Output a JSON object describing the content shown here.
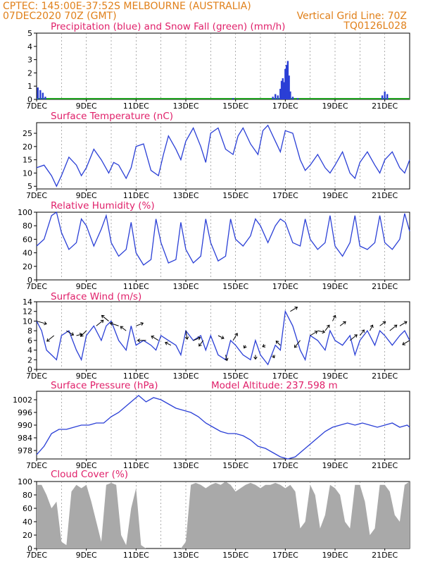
{
  "header": {
    "line1": "CPTEC:   145:00E-37:52S   MELBOURNE (AUSTRALIA)",
    "line2": "07DEC2020 70Z (GMT)",
    "vgrid": "Vertical Grid Line: 70Z",
    "code": "TQ0126L028"
  },
  "colors": {
    "header": "#e0801a",
    "title": "#e0206a",
    "line": "#2a3fd6",
    "snow": "#1fa21f",
    "cloud": "#a9a9a9",
    "arrow": "#000000"
  },
  "xaxis": {
    "labels": [
      "7DEC",
      "9DEC",
      "11DEC",
      "13DEC",
      "15DEC",
      "17DEC",
      "19DEC",
      "21DEC"
    ]
  },
  "panels": {
    "precip": {
      "title": "Precipitation (blue) and Snow Fall (green) (mm/h)",
      "yticks": [
        "0",
        "1",
        "2",
        "3",
        "4",
        "5"
      ],
      "ylim": [
        0,
        5
      ]
    },
    "temp": {
      "title": "Surface Temperature (nC)",
      "yticks": [
        "5",
        "10",
        "15",
        "20",
        "25"
      ],
      "ylim": [
        4,
        29
      ]
    },
    "rh": {
      "title": "Relative Humidity (%)",
      "yticks": [
        "0",
        "20",
        "40",
        "60",
        "80",
        "100"
      ],
      "ylim": [
        0,
        100
      ]
    },
    "wind": {
      "title": "Surface Wind (m/s)",
      "yticks": [
        "0",
        "2",
        "4",
        "6",
        "8",
        "10",
        "12",
        "14"
      ],
      "ylim": [
        0,
        14
      ]
    },
    "pres": {
      "title": "Surface Pressure (hPa)",
      "extra": "Model Altitude: 237.598 m",
      "yticks": [
        "978",
        "984",
        "990",
        "996",
        "1002"
      ],
      "ylim": [
        974,
        1006
      ]
    },
    "cloud": {
      "title": "Cloud Cover (%)",
      "yticks": [
        "0",
        "20",
        "40",
        "60",
        "80",
        "100"
      ],
      "ylim": [
        0,
        100
      ]
    }
  },
  "chart_data": [
    {
      "type": "bar",
      "title": "Precipitation (blue) and Snow Fall (green) (mm/h)",
      "x_unit": "day of December 2020",
      "ylim": [
        0,
        5
      ],
      "series": [
        {
          "name": "Precipitation",
          "x": [
            7.05,
            7.15,
            7.25,
            7.35,
            14.9,
            16.5,
            16.6,
            16.7,
            16.8,
            16.85,
            16.9,
            16.95,
            17.0,
            17.05,
            17.1,
            17.15,
            17.2,
            17.3,
            17.5,
            20.9,
            21.0,
            21.1
          ],
          "values": [
            0.9,
            0.7,
            0.5,
            0.2,
            0.1,
            0.2,
            0.4,
            0.3,
            0.8,
            1.4,
            1.6,
            1.3,
            2.3,
            2.6,
            2.9,
            1.8,
            0.6,
            0.2,
            0.1,
            0.3,
            0.6,
            0.4
          ]
        }
      ],
      "baseline_note": "Snow Fall (green) is zero throughout"
    },
    {
      "type": "line",
      "title": "Surface Temperature (nC)",
      "ylim": [
        4,
        29
      ],
      "x": [
        7.0,
        7.3,
        7.6,
        7.8,
        8.0,
        8.3,
        8.6,
        8.8,
        9.0,
        9.3,
        9.6,
        9.9,
        10.1,
        10.3,
        10.6,
        10.8,
        11.0,
        11.3,
        11.6,
        11.9,
        12.1,
        12.3,
        12.6,
        12.8,
        13.0,
        13.3,
        13.6,
        13.8,
        14.0,
        14.3,
        14.6,
        14.9,
        15.1,
        15.3,
        15.6,
        15.9,
        16.1,
        16.3,
        16.6,
        16.8,
        17.0,
        17.3,
        17.6,
        17.8,
        18.0,
        18.3,
        18.6,
        18.8,
        19.0,
        19.3,
        19.6,
        19.8,
        20.0,
        20.3,
        20.6,
        20.8,
        21.0,
        21.3,
        21.6,
        21.8,
        22.0
      ],
      "values": [
        12,
        13,
        9,
        5,
        9,
        16,
        13,
        9,
        12,
        19,
        15,
        10,
        14,
        13,
        8,
        12,
        20,
        21,
        11,
        9,
        17,
        24,
        19,
        15,
        22,
        27,
        20,
        14,
        25,
        27,
        19,
        17,
        24,
        27,
        21,
        17,
        26,
        28,
        22,
        18,
        26,
        25,
        15,
        11,
        13,
        17,
        12,
        10,
        13,
        18,
        10,
        8,
        14,
        18,
        13,
        10,
        15,
        18,
        12,
        10,
        15
      ]
    },
    {
      "type": "line",
      "title": "Relative Humidity (%)",
      "ylim": [
        0,
        100
      ],
      "x": [
        7.0,
        7.3,
        7.6,
        7.8,
        8.0,
        8.3,
        8.6,
        8.8,
        9.0,
        9.3,
        9.6,
        9.8,
        10.0,
        10.3,
        10.6,
        10.8,
        11.0,
        11.3,
        11.6,
        11.8,
        12.0,
        12.3,
        12.6,
        12.8,
        13.0,
        13.3,
        13.6,
        13.8,
        14.0,
        14.3,
        14.6,
        14.8,
        15.0,
        15.3,
        15.6,
        15.8,
        16.0,
        16.3,
        16.6,
        16.8,
        17.0,
        17.3,
        17.6,
        17.8,
        18.0,
        18.3,
        18.6,
        18.8,
        19.0,
        19.3,
        19.6,
        19.8,
        20.0,
        20.3,
        20.6,
        20.8,
        21.0,
        21.3,
        21.6,
        21.8,
        22.0
      ],
      "values": [
        50,
        60,
        95,
        100,
        70,
        45,
        55,
        90,
        80,
        50,
        75,
        95,
        55,
        35,
        45,
        85,
        40,
        22,
        30,
        90,
        55,
        25,
        30,
        85,
        45,
        25,
        35,
        90,
        55,
        28,
        35,
        90,
        60,
        50,
        65,
        90,
        80,
        55,
        80,
        90,
        85,
        55,
        50,
        90,
        60,
        45,
        55,
        95,
        50,
        35,
        55,
        95,
        50,
        45,
        55,
        95,
        55,
        45,
        60,
        98,
        72
      ]
    },
    {
      "type": "line",
      "title": "Surface Wind (m/s)",
      "ylim": [
        0,
        14
      ],
      "x": [
        7.0,
        7.2,
        7.4,
        7.6,
        7.8,
        8.0,
        8.3,
        8.6,
        8.8,
        9.0,
        9.3,
        9.6,
        9.8,
        10.0,
        10.3,
        10.6,
        10.8,
        11.0,
        11.3,
        11.6,
        11.8,
        12.0,
        12.3,
        12.6,
        12.8,
        13.0,
        13.3,
        13.6,
        13.8,
        14.0,
        14.3,
        14.6,
        14.8,
        15.0,
        15.3,
        15.6,
        15.8,
        16.0,
        16.3,
        16.6,
        16.8,
        17.0,
        17.3,
        17.6,
        17.8,
        18.0,
        18.3,
        18.6,
        18.8,
        19.0,
        19.3,
        19.6,
        19.8,
        20.0,
        20.3,
        20.6,
        20.8,
        21.0,
        21.3,
        21.6,
        21.8,
        22.0
      ],
      "values": [
        10,
        8,
        4,
        3,
        2,
        7,
        8,
        4,
        2,
        7,
        9,
        6,
        9,
        10,
        6,
        4,
        9,
        5,
        6,
        5,
        4,
        7,
        6,
        5,
        3,
        8,
        6,
        7,
        4,
        7,
        3,
        2,
        6,
        5,
        3,
        2,
        6,
        3,
        1,
        5,
        4,
        12,
        9,
        4,
        2,
        7,
        6,
        4,
        8,
        6,
        5,
        7,
        3,
        6,
        8,
        5,
        8,
        7,
        5,
        7,
        8,
        6
      ]
    },
    {
      "type": "line",
      "title": "Surface Pressure (hPa)",
      "ylim": [
        974,
        1006
      ],
      "x": [
        7.0,
        7.3,
        7.6,
        7.9,
        8.2,
        8.5,
        8.8,
        9.1,
        9.4,
        9.7,
        10.0,
        10.3,
        10.6,
        10.9,
        11.1,
        11.4,
        11.7,
        12.0,
        12.3,
        12.6,
        12.9,
        13.2,
        13.5,
        13.8,
        14.1,
        14.4,
        14.7,
        15.0,
        15.3,
        15.6,
        15.9,
        16.2,
        16.5,
        16.8,
        17.1,
        17.4,
        17.7,
        18.0,
        18.3,
        18.6,
        18.9,
        19.2,
        19.5,
        19.8,
        20.1,
        20.4,
        20.7,
        21.0,
        21.3,
        21.6,
        21.9,
        22.0
      ],
      "values": [
        976,
        980,
        986,
        988,
        988,
        989,
        990,
        990,
        991,
        991,
        994,
        996,
        999,
        1002,
        1004,
        1001,
        1003,
        1002,
        1000,
        998,
        997,
        996,
        994,
        991,
        989,
        987,
        986,
        986,
        985,
        983,
        980,
        979,
        977,
        975,
        974,
        975,
        978,
        981,
        984,
        987,
        989,
        990,
        991,
        990,
        991,
        990,
        989,
        990,
        991,
        989,
        990,
        989
      ]
    },
    {
      "type": "area",
      "title": "Cloud Cover (%)",
      "ylim": [
        0,
        100
      ],
      "x": [
        7.0,
        7.2,
        7.4,
        7.6,
        7.8,
        8.0,
        8.2,
        8.4,
        8.6,
        8.8,
        9.0,
        9.2,
        9.4,
        9.6,
        9.8,
        10.0,
        10.2,
        10.4,
        10.6,
        10.8,
        11.0,
        11.2,
        11.4,
        11.6,
        11.8,
        12.0,
        12.2,
        12.4,
        12.6,
        12.8,
        13.0,
        13.2,
        13.4,
        13.6,
        13.8,
        14.0,
        14.2,
        14.4,
        14.6,
        14.8,
        15.0,
        15.2,
        15.4,
        15.6,
        15.8,
        16.0,
        16.2,
        16.4,
        16.6,
        16.8,
        17.0,
        17.2,
        17.4,
        17.6,
        17.8,
        18.0,
        18.2,
        18.4,
        18.6,
        18.8,
        19.0,
        19.2,
        19.4,
        19.6,
        19.8,
        20.0,
        20.2,
        20.4,
        20.6,
        20.8,
        21.0,
        21.2,
        21.4,
        21.6,
        21.8,
        22.0
      ],
      "values": [
        95,
        95,
        80,
        60,
        70,
        10,
        5,
        85,
        95,
        90,
        95,
        70,
        40,
        10,
        95,
        98,
        95,
        20,
        5,
        60,
        90,
        5,
        0,
        0,
        0,
        0,
        0,
        0,
        0,
        0,
        10,
        95,
        98,
        95,
        90,
        95,
        98,
        95,
        100,
        95,
        85,
        90,
        95,
        98,
        95,
        90,
        95,
        95,
        98,
        95,
        90,
        95,
        85,
        30,
        40,
        95,
        80,
        30,
        50,
        95,
        90,
        80,
        40,
        30,
        95,
        95,
        70,
        20,
        30,
        95,
        95,
        85,
        50,
        40,
        95,
        100
      ]
    }
  ],
  "wind_arrows": {
    "x": [
      7.0,
      7.7,
      8.2,
      8.6,
      9.0,
      9.4,
      9.9,
      10.3,
      10.6,
      11.0,
      11.4,
      11.9,
      12.4,
      13.0,
      13.3,
      13.7,
      14.3,
      14.6,
      14.9,
      15.4,
      15.8,
      16.2,
      16.5,
      16.8,
      17.2,
      17.6,
      18.0,
      18.3,
      18.6,
      18.9,
      19.2,
      19.6,
      20.0,
      20.4,
      20.8,
      21.2,
      21.6,
      22.0
    ],
    "speed": [
      10,
      7,
      8,
      7,
      8,
      9,
      10,
      9,
      8,
      9,
      6,
      6,
      5,
      8,
      6,
      6,
      7,
      3,
      6,
      5,
      3,
      5,
      3,
      5,
      12,
      6,
      7,
      8,
      8,
      10,
      9,
      6,
      7,
      8,
      9,
      8,
      9,
      6
    ],
    "dx": [
      14,
      -10,
      10,
      8,
      -8,
      10,
      -10,
      -12,
      -8,
      10,
      -12,
      -10,
      -8,
      2,
      10,
      -6,
      8,
      2,
      6,
      -2,
      0,
      -4,
      2,
      -6,
      10,
      -8,
      10,
      10,
      6,
      4,
      8,
      10,
      6,
      4,
      8,
      10,
      10,
      -10
    ],
    "dy": [
      4,
      8,
      6,
      -2,
      8,
      -8,
      -8,
      -4,
      -6,
      -4,
      0,
      -6,
      -4,
      12,
      -4,
      8,
      4,
      8,
      -10,
      4,
      6,
      2,
      4,
      -6,
      -6,
      10,
      -6,
      2,
      -8,
      -8,
      -6,
      -8,
      -8,
      -8,
      -6,
      -8,
      -6,
      6
    ]
  }
}
